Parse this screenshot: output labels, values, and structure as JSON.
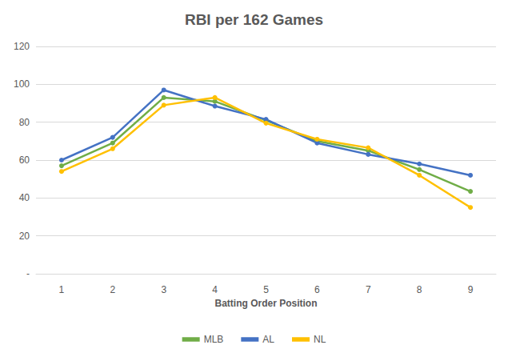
{
  "chart_data": {
    "type": "line",
    "title": "RBI per 162 Games",
    "x_label": "Batting Order Position",
    "categories": [
      "1",
      "2",
      "3",
      "4",
      "5",
      "6",
      "7",
      "8",
      "9"
    ],
    "series": [
      {
        "name": "MLB",
        "color": "#70ad47",
        "values": [
          57,
          69,
          93,
          91,
          81,
          70,
          65,
          55,
          43.5
        ]
      },
      {
        "name": "AL",
        "color": "#4472c4",
        "values": [
          60,
          72,
          97,
          88.5,
          81.5,
          69,
          63,
          58,
          52
        ]
      },
      {
        "name": "NL",
        "color": "#ffc000",
        "values": [
          54,
          66,
          89,
          93,
          79.5,
          71,
          66.5,
          52,
          35
        ]
      }
    ],
    "ylim": [
      0,
      120
    ],
    "yticks": [
      {
        "value": 0,
        "label": "-"
      },
      20,
      40,
      60,
      80,
      100,
      120
    ],
    "grid": true,
    "legend": "bottom",
    "marker": "circle",
    "line_style": "solid"
  }
}
